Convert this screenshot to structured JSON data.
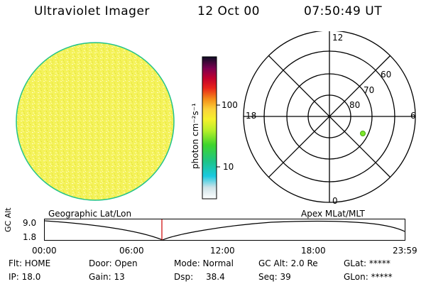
{
  "header": {
    "instrument": "Ultraviolet Imager",
    "date": "12 Oct 00",
    "time": "07:50:49 UT"
  },
  "colorbar": {
    "unit_label": "photon cm⁻²s⁻¹",
    "tick_100": "100",
    "tick_10": "10"
  },
  "polar_plot": {
    "label_top": "12",
    "label_left": "18",
    "label_right": "6",
    "label_bottom": "0",
    "label_60": "60",
    "label_70": "70",
    "label_80": "80"
  },
  "timeline": {
    "left_title": "Geographic Lat/Lon",
    "right_title": "Apex MLat/MLT",
    "y_axis_label": "GC Alt",
    "y_max": "9.0",
    "y_min": "1.8",
    "x_ticks": [
      "00:00",
      "06:00",
      "12:00",
      "18:00",
      "23:59"
    ],
    "marker_time": "07:50:49"
  },
  "info": {
    "flt": "Flt: HOME",
    "door": "Door: Open",
    "mode": "Mode: Normal",
    "gc_alt": "GC Alt: 2.0 Re",
    "glat": "GLat: *****",
    "ip": "IP: 18.0",
    "gain": "Gain: 13",
    "dsp_label": "Dsp:",
    "dsp_value": "38.4",
    "seq": "Seq: 39",
    "glon": "GLon: *****"
  },
  "colors": {
    "disk_fill": "#f4f25a",
    "disk_edge": "#22c38a",
    "marker_line": "#cc0000",
    "point": "#7de82a"
  }
}
